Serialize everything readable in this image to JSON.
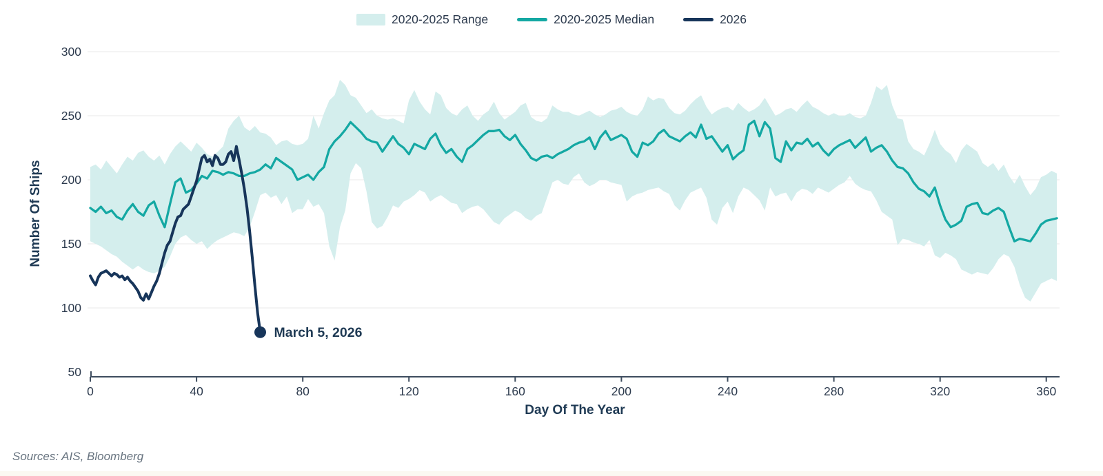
{
  "legend": {
    "items": [
      {
        "label": "2020-2025 Range",
        "swatch": "band",
        "color": "#d4eeed"
      },
      {
        "label": "2020-2025 Median",
        "swatch": "line",
        "color": "#14a8a3"
      },
      {
        "label": "2026",
        "swatch": "line",
        "color": "#17355a"
      }
    ]
  },
  "annotation": {
    "label": "March 5, 2026",
    "day": 64,
    "value": 81
  },
  "sources": "Sources: AIS, Bloomberg",
  "colors": {
    "gridline": "#e8e8e8",
    "axis": "#3d4c5e",
    "tick_text": "#2d3b4e",
    "title_text": "#1f3a54",
    "annotation_text": "#1f3a54",
    "sources_text": "#67737f",
    "footer_strip": "#fbf9f2",
    "band": "#d4eeed",
    "median": "#14a8a3",
    "line_2026": "#17355a"
  },
  "chart_data": {
    "type": "line",
    "title": "",
    "xlabel": "Day Of The Year",
    "ylabel": "Number Of Ships",
    "xlim": [
      0,
      365
    ],
    "ylim": [
      50,
      300
    ],
    "x_ticks": [
      0,
      40,
      80,
      120,
      160,
      200,
      240,
      280,
      320,
      360
    ],
    "y_ticks": [
      50,
      100,
      150,
      200,
      250,
      300
    ],
    "grid": "horizontal",
    "legend_position": "top-center",
    "series": [
      {
        "name": "2020-2025 Range",
        "type": "band",
        "x_start": 0,
        "x_step": 2,
        "upper": [
          210,
          212,
          208,
          215,
          210,
          205,
          212,
          218,
          215,
          221,
          223,
          218,
          215,
          219,
          212,
          220,
          226,
          230,
          226,
          222,
          229,
          225,
          220,
          218,
          222,
          226,
          240,
          246,
          250,
          241,
          238,
          242,
          237,
          236,
          233,
          227,
          230,
          231,
          228,
          227,
          228,
          232,
          250,
          240,
          252,
          262,
          266,
          278,
          274,
          266,
          264,
          258,
          252,
          255,
          250,
          248,
          247,
          248,
          246,
          244,
          262,
          270,
          261,
          255,
          251,
          269,
          266,
          256,
          252,
          250,
          255,
          258,
          250,
          246,
          251,
          254,
          261,
          252,
          247,
          250,
          253,
          258,
          260,
          249,
          246,
          245,
          248,
          258,
          255,
          253,
          253,
          251,
          250,
          252,
          254,
          251,
          249,
          251,
          254,
          255,
          257,
          253,
          251,
          250,
          255,
          265,
          262,
          264,
          263,
          256,
          252,
          251,
          254,
          259,
          263,
          266,
          257,
          251,
          254,
          256,
          257,
          254,
          260,
          256,
          253,
          255,
          258,
          264,
          257,
          250,
          252,
          255,
          256,
          253,
          258,
          262,
          257,
          255,
          252,
          250,
          252,
          250,
          250,
          252,
          249,
          248,
          250,
          260,
          273,
          270,
          274,
          258,
          248,
          247,
          230,
          224,
          222,
          219,
          228,
          239,
          228,
          223,
          220,
          213,
          223,
          228,
          225,
          222,
          213,
          210,
          213,
          207,
          212,
          203,
          197,
          204,
          195,
          188,
          193,
          202,
          204,
          207,
          205
        ],
        "lower": [
          152,
          150,
          148,
          145,
          142,
          140,
          136,
          133,
          130,
          133,
          130,
          128,
          127,
          129,
          132,
          140,
          150,
          155,
          157,
          153,
          150,
          152,
          146,
          150,
          153,
          155,
          157,
          159,
          158,
          156,
          163,
          175,
          188,
          190,
          186,
          188,
          181,
          187,
          174,
          177,
          177,
          185,
          179,
          181,
          174,
          148,
          137,
          163,
          176,
          205,
          213,
          209,
          191,
          167,
          162,
          164,
          171,
          180,
          178,
          183,
          185,
          188,
          192,
          190,
          183,
          186,
          188,
          185,
          182,
          181,
          174,
          177,
          179,
          180,
          177,
          172,
          167,
          165,
          170,
          173,
          176,
          174,
          170,
          168,
          172,
          174,
          186,
          198,
          200,
          197,
          196,
          202,
          205,
          198,
          195,
          197,
          200,
          200,
          198,
          197,
          196,
          183,
          187,
          189,
          190,
          192,
          193,
          194,
          191,
          189,
          180,
          176,
          184,
          190,
          192,
          194,
          186,
          169,
          165,
          178,
          183,
          174,
          187,
          194,
          192,
          188,
          184,
          176,
          194,
          187,
          189,
          190,
          183,
          190,
          193,
          192,
          189,
          194,
          192,
          190,
          193,
          196,
          198,
          203,
          197,
          194,
          192,
          191,
          184,
          175,
          172,
          169,
          149,
          154,
          153,
          151,
          150,
          148,
          153,
          141,
          139,
          143,
          141,
          138,
          130,
          128,
          126,
          128,
          127,
          126,
          131,
          138,
          142,
          140,
          132,
          118,
          108,
          105,
          112,
          119,
          121,
          123,
          121
        ]
      },
      {
        "name": "2020-2025 Median",
        "type": "line",
        "x_start": 0,
        "x_step": 2,
        "values": [
          178,
          175,
          179,
          174,
          176,
          171,
          169,
          176,
          181,
          175,
          172,
          180,
          183,
          172,
          163,
          181,
          198,
          201,
          190,
          192,
          197,
          203,
          201,
          207,
          206,
          204,
          206,
          205,
          203,
          203,
          205,
          206,
          208,
          212,
          209,
          217,
          214,
          211,
          208,
          200,
          202,
          204,
          200,
          206,
          210,
          224,
          230,
          234,
          239,
          245,
          241,
          237,
          232,
          230,
          229,
          222,
          228,
          234,
          228,
          225,
          220,
          228,
          226,
          224,
          232,
          236,
          227,
          221,
          224,
          218,
          214,
          224,
          227,
          231,
          235,
          238,
          238,
          239,
          234,
          231,
          235,
          228,
          223,
          217,
          215,
          218,
          219,
          217,
          220,
          222,
          224,
          227,
          229,
          230,
          233,
          224,
          233,
          238,
          231,
          233,
          235,
          232,
          222,
          218,
          229,
          227,
          230,
          236,
          239,
          234,
          232,
          230,
          234,
          237,
          233,
          243,
          232,
          234,
          228,
          222,
          227,
          216,
          220,
          223,
          243,
          246,
          234,
          245,
          240,
          217,
          214,
          230,
          223,
          229,
          228,
          232,
          226,
          229,
          223,
          219,
          224,
          227,
          229,
          231,
          225,
          229,
          233,
          222,
          225,
          227,
          222,
          215,
          210,
          209,
          205,
          198,
          193,
          191,
          187,
          194,
          180,
          169,
          163,
          165,
          168,
          179,
          181,
          182,
          174,
          173,
          176,
          178,
          175,
          163,
          152,
          154,
          153,
          152,
          158,
          165,
          168,
          169,
          170
        ]
      },
      {
        "name": "2026",
        "type": "line",
        "x_start": 0,
        "x_step": 1,
        "end_dot": true,
        "values": [
          125,
          121,
          118,
          124,
          127,
          128,
          129,
          127,
          125,
          127,
          126,
          124,
          125,
          122,
          124,
          121,
          119,
          116,
          113,
          108,
          106,
          111,
          107,
          112,
          117,
          121,
          127,
          135,
          143,
          149,
          152,
          159,
          166,
          171,
          172,
          177,
          179,
          181,
          187,
          193,
          199,
          208,
          217,
          219,
          214,
          216,
          211,
          219,
          217,
          212,
          212,
          214,
          220,
          222,
          215,
          226,
          216,
          205,
          193,
          178,
          160,
          139,
          117,
          96,
          81
        ]
      }
    ]
  }
}
